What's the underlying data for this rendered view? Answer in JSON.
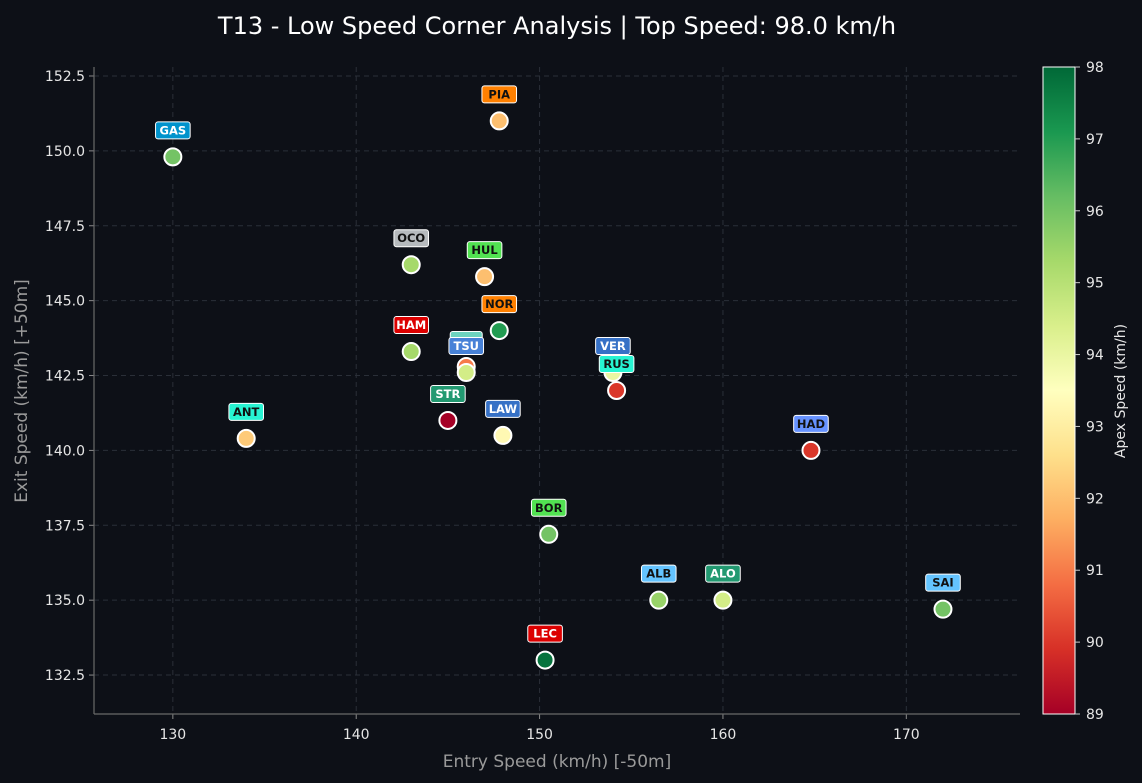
{
  "chart_data": {
    "type": "scatter",
    "title": "T13 - Low Speed Corner Analysis | Top Speed: 98.0 km/h",
    "xlabel": "Entry Speed (km/h) [-50m]",
    "ylabel": "Exit Speed (km/h) [+50m]",
    "xlim": [
      125.7,
      176.2
    ],
    "ylim": [
      131.2,
      152.8
    ],
    "xticks": [
      130,
      140,
      150,
      160,
      170
    ],
    "yticks": [
      132.5,
      135.0,
      137.5,
      140.0,
      142.5,
      145.0,
      147.5,
      150.0,
      152.5
    ],
    "grid": true,
    "colorbar": {
      "label": "Apex Speed (km/h)",
      "range": [
        89,
        98
      ],
      "ticks": [
        89,
        90,
        91,
        92,
        93,
        94,
        95,
        96,
        97,
        98
      ],
      "colormap": "RdYlGn",
      "stops": [
        "#a50026",
        "#d73027",
        "#f46d43",
        "#fdae61",
        "#fee08b",
        "#ffffbf",
        "#d9ef8b",
        "#a6d96a",
        "#66bd63",
        "#1a9850",
        "#006837"
      ]
    },
    "points": [
      {
        "driver": "GAS",
        "entry": 130.0,
        "exit": 149.8,
        "apex": 96.0,
        "label_color": "#0093cc",
        "label_text_color": "#ffffff"
      },
      {
        "driver": "PIA",
        "entry": 147.8,
        "exit": 151.0,
        "apex": 92.0,
        "label_color": "#ff8000",
        "label_text_color": "#111111"
      },
      {
        "driver": "OCO",
        "entry": 143.0,
        "exit": 146.2,
        "apex": 95.3,
        "label_color": "#b6babd",
        "label_text_color": "#111111"
      },
      {
        "driver": "HUL",
        "entry": 147.0,
        "exit": 145.8,
        "apex": 92.0,
        "label_color": "#52e252",
        "label_text_color": "#111111"
      },
      {
        "driver": "NOR",
        "entry": 147.8,
        "exit": 144.0,
        "apex": 97.0,
        "label_color": "#ff8000",
        "label_text_color": "#111111"
      },
      {
        "driver": "HAM",
        "entry": 143.0,
        "exit": 143.3,
        "apex": 95.3,
        "label_color": "#dc0000",
        "label_text_color": "#ffffff"
      },
      {
        "driver": "",
        "entry": 146.0,
        "exit": 142.8,
        "apex": 91.0,
        "label_color": "#6cd3bf",
        "label_text_color": "#111111"
      },
      {
        "driver": "TSU",
        "entry": 146.0,
        "exit": 142.6,
        "apex": 94.5,
        "label_color": "#4781d7",
        "label_text_color": "#ffffff"
      },
      {
        "driver": "VER",
        "entry": 154.0,
        "exit": 142.6,
        "apex": 94.0,
        "label_color": "#3671c6",
        "label_text_color": "#ffffff"
      },
      {
        "driver": "RUS",
        "entry": 154.2,
        "exit": 142.0,
        "apex": 90.0,
        "label_color": "#27f4d2",
        "label_text_color": "#111111"
      },
      {
        "driver": "STR",
        "entry": 145.0,
        "exit": 141.0,
        "apex": 89.0,
        "label_color": "#229971",
        "label_text_color": "#ffffff"
      },
      {
        "driver": "LAW",
        "entry": 148.0,
        "exit": 140.5,
        "apex": 93.3,
        "label_color": "#3671c6",
        "label_text_color": "#ffffff"
      },
      {
        "driver": "ANT",
        "entry": 134.0,
        "exit": 140.4,
        "apex": 92.2,
        "label_color": "#27f4d2",
        "label_text_color": "#111111"
      },
      {
        "driver": "HAD",
        "entry": 164.8,
        "exit": 140.0,
        "apex": 90.0,
        "label_color": "#6692ff",
        "label_text_color": "#111111"
      },
      {
        "driver": "BOR",
        "entry": 150.5,
        "exit": 137.2,
        "apex": 96.0,
        "label_color": "#52e252",
        "label_text_color": "#111111"
      },
      {
        "driver": "ALB",
        "entry": 156.5,
        "exit": 135.0,
        "apex": 95.5,
        "label_color": "#64c4ff",
        "label_text_color": "#111111"
      },
      {
        "driver": "ALO",
        "entry": 160.0,
        "exit": 135.0,
        "apex": 94.5,
        "label_color": "#229971",
        "label_text_color": "#ffffff"
      },
      {
        "driver": "SAI",
        "entry": 172.0,
        "exit": 134.7,
        "apex": 96.0,
        "label_color": "#64c4ff",
        "label_text_color": "#111111"
      },
      {
        "driver": "LEC",
        "entry": 150.3,
        "exit": 133.0,
        "apex": 97.8,
        "label_color": "#dc0000",
        "label_text_color": "#ffffff"
      }
    ]
  }
}
